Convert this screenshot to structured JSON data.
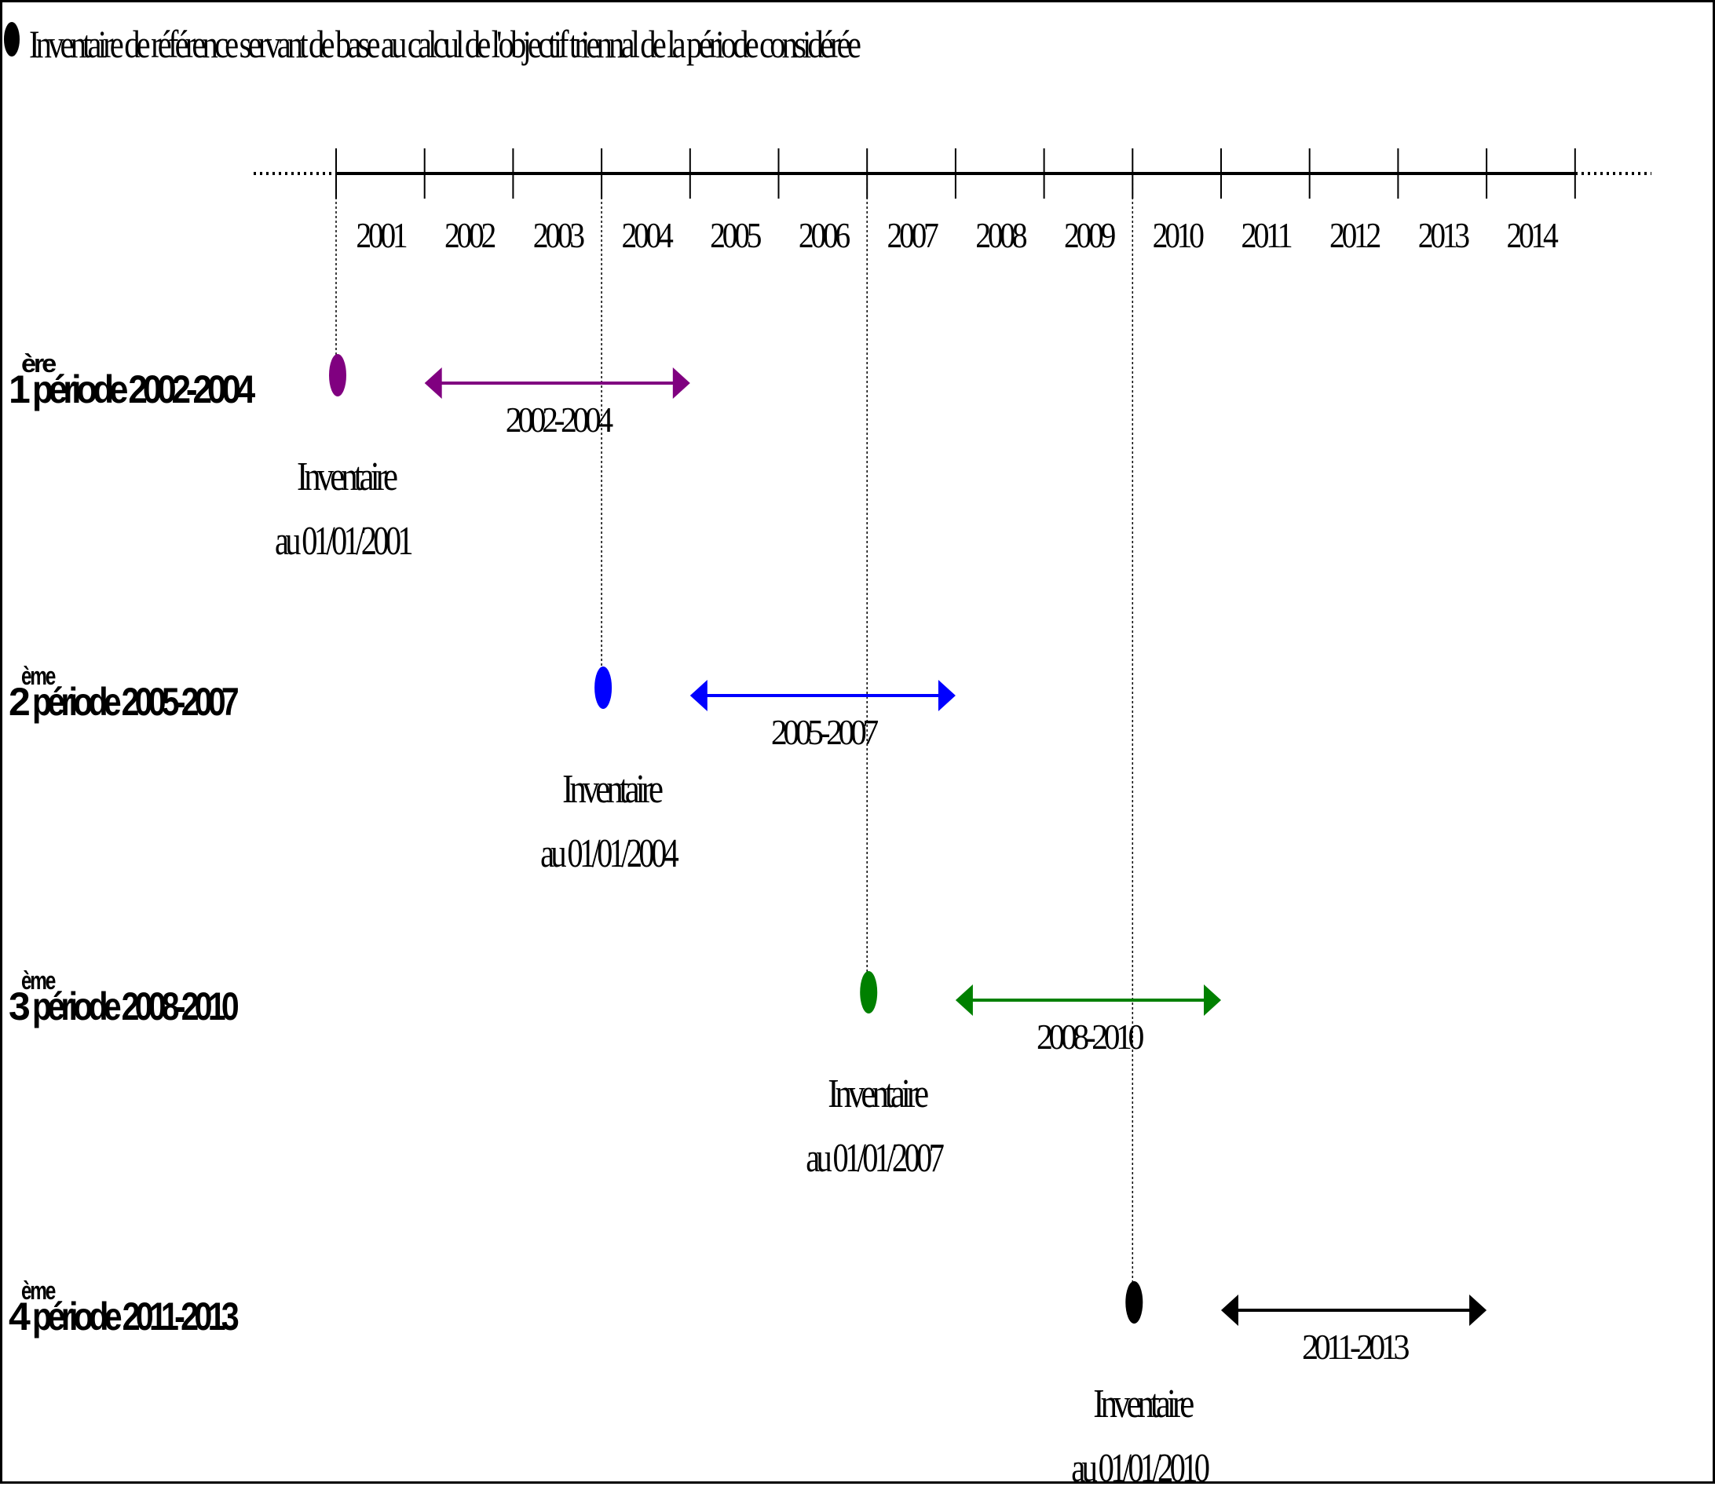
{
  "legend": {
    "text": "Inventaire de référence servant de base au calcul de l'objectif triennal de la période considérée",
    "marker_color": "#000000"
  },
  "timeline": {
    "years": [
      "2001",
      "2002",
      "2003",
      "2004",
      "2005",
      "2006",
      "2007",
      "2008",
      "2009",
      "2010",
      "2011",
      "2012",
      "2013",
      "2014"
    ]
  },
  "periods": [
    {
      "num": "1",
      "sup": "ère",
      "label": "période 2002-2004",
      "color": "#800080",
      "range_label": "2002-2004",
      "range_start": 2002,
      "range_end": 2005,
      "inventory_year": 2001,
      "inventory_line1": "Inventaire",
      "inventory_line2": "au 01/01/2001"
    },
    {
      "num": "2",
      "sup": "ème",
      "label": "période 2005-2007",
      "color": "#0000ff",
      "range_label": "2005-2007",
      "range_start": 2005,
      "range_end": 2008,
      "inventory_year": 2004,
      "inventory_line1": "Inventaire",
      "inventory_line2": "au 01/01/2004"
    },
    {
      "num": "3",
      "sup": "ème",
      "label": "période 2008-2010",
      "color": "#008000",
      "range_label": "2008-2010",
      "range_start": 2008,
      "range_end": 2011,
      "inventory_year": 2007,
      "inventory_line1": "Inventaire",
      "inventory_line2": "au 01/01/2007"
    },
    {
      "num": "4",
      "sup": "ème",
      "label": "période 2011-2013",
      "color": "#000000",
      "range_label": "2011-2013",
      "range_start": 2011,
      "range_end": 2014,
      "inventory_year": 2010,
      "inventory_line1": "Inventaire",
      "inventory_line2": "au 01/01/2010"
    }
  ]
}
